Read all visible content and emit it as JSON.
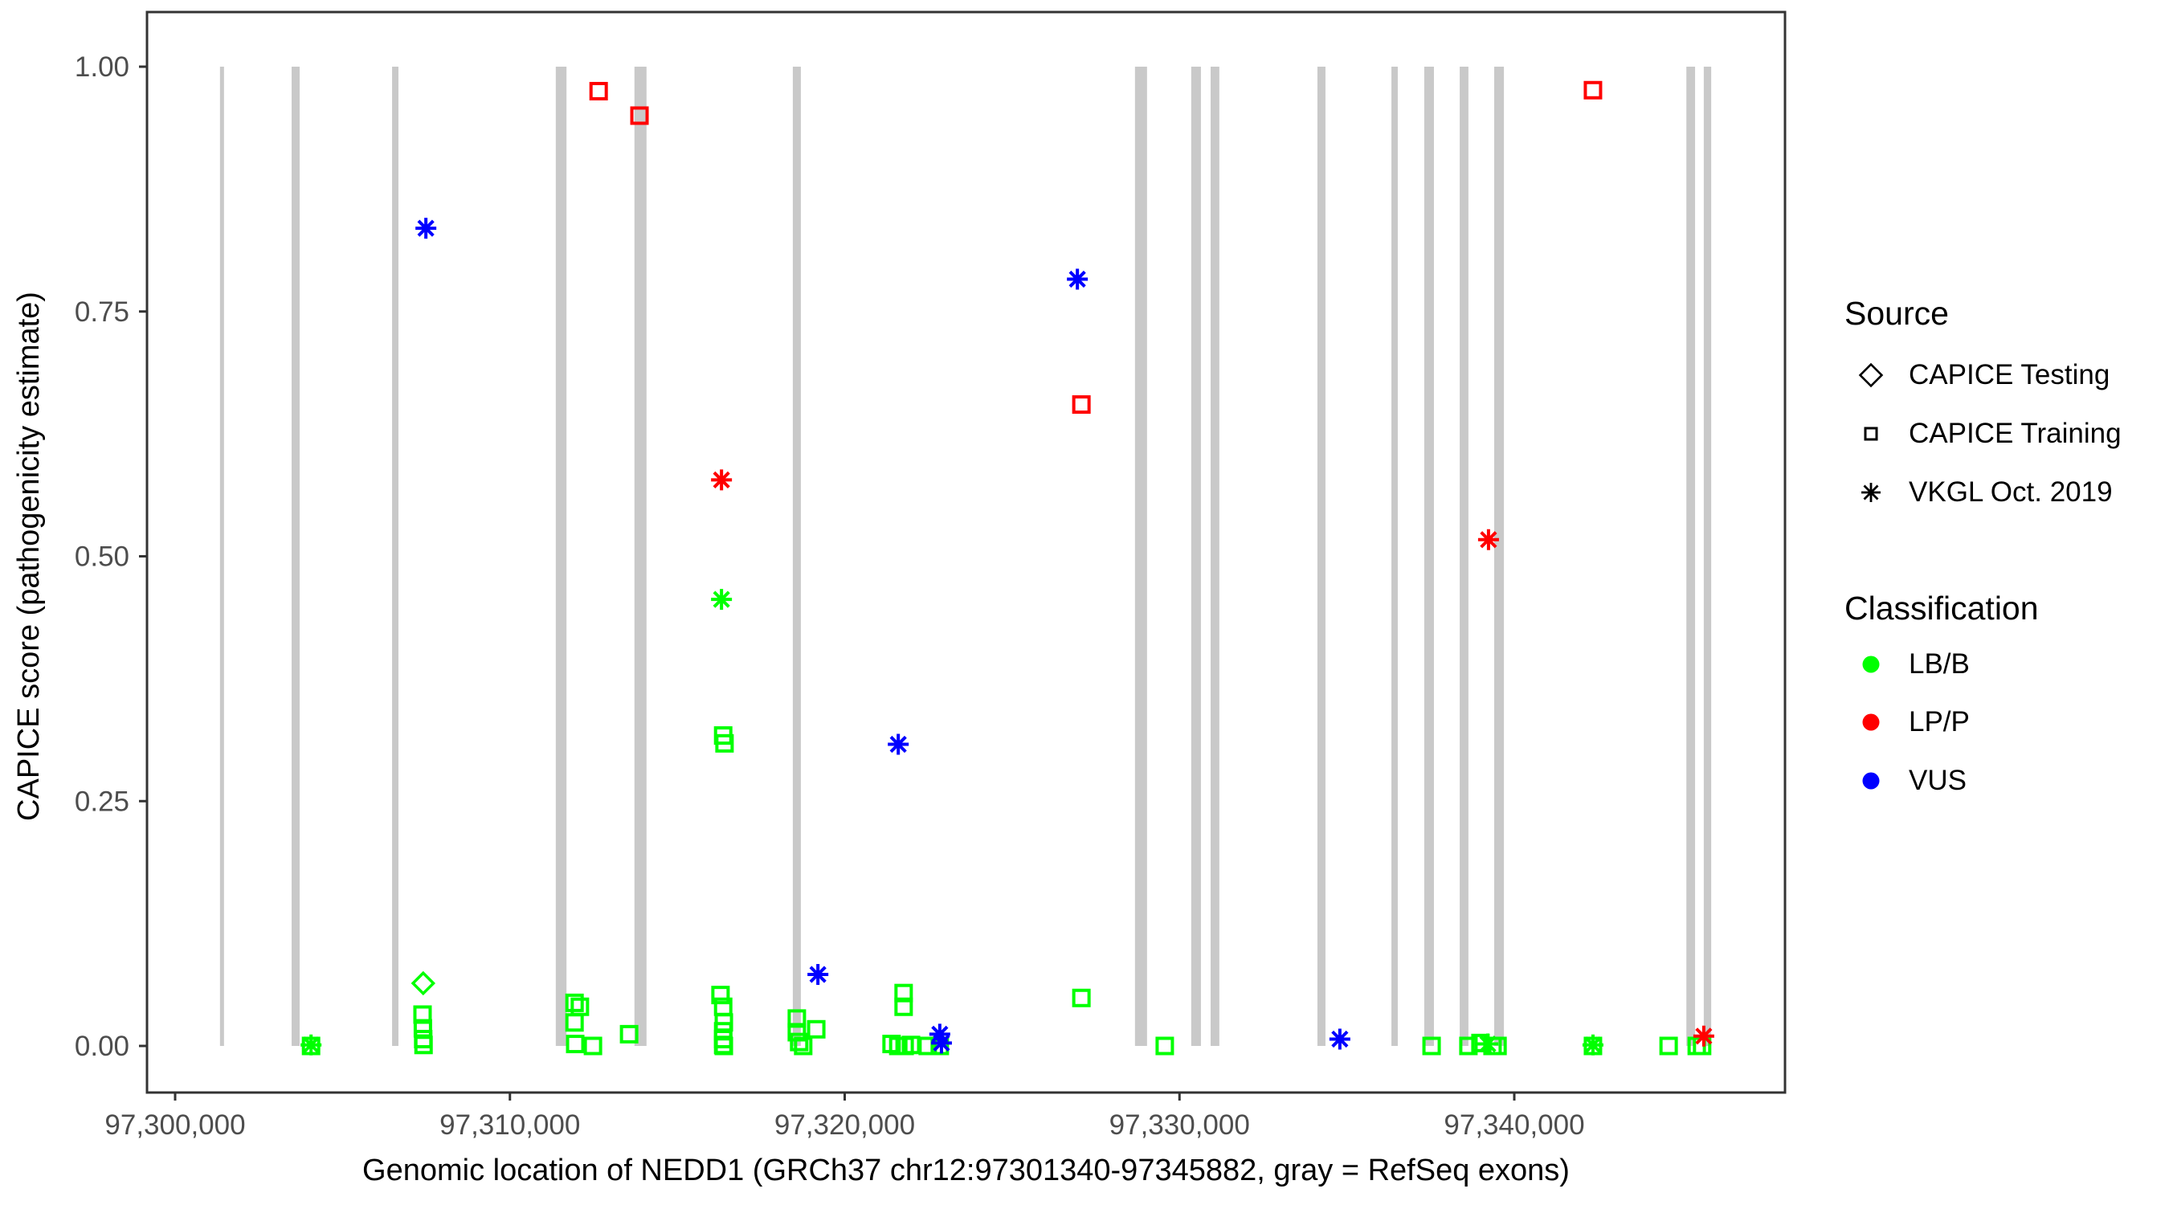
{
  "x_axis": {
    "title": "Genomic location of NEDD1 (GRCh37 chr12:97301340-97345882, gray = RefSeq exons)",
    "tick_labels": [
      "97,300,000",
      "97,310,000",
      "97,320,000",
      "97,330,000",
      "97,340,000"
    ],
    "tick_values": [
      97300000,
      97310000,
      97320000,
      97330000,
      97340000
    ]
  },
  "y_axis": {
    "title": "CAPICE score (pathogenicity estimate)",
    "tick_labels": [
      "0.00",
      "0.25",
      "0.50",
      "0.75",
      "1.00"
    ],
    "tick_values": [
      0,
      0.25,
      0.5,
      0.75,
      1.0
    ]
  },
  "legend": {
    "source": {
      "title": "Source",
      "items": [
        {
          "label": "CAPICE Testing",
          "marker": "diamond"
        },
        {
          "label": "CAPICE Training",
          "marker": "square"
        },
        {
          "label": "VKGL Oct. 2019",
          "marker": "asterisk"
        }
      ]
    },
    "classification": {
      "title": "Classification",
      "items": [
        {
          "label": "LB/B",
          "color": "#00FF00"
        },
        {
          "label": "LP/P",
          "color": "#FF0000"
        },
        {
          "label": "VUS",
          "color": "#0000FF"
        }
      ]
    }
  },
  "chart_data": {
    "type": "scatter",
    "title": "",
    "xlabel": "Genomic location of NEDD1 (GRCh37 chr12:97301340-97345882, gray = RefSeq exons)",
    "ylabel": "CAPICE score (pathogenicity estimate)",
    "xlim": [
      97299160,
      97348100
    ],
    "ylim": [
      -0.048,
      1.056
    ],
    "grid": false,
    "legend_position": "right",
    "colors": {
      "LB/B": "#00FF00",
      "LP/P": "#FF0000",
      "VUS": "#0000FF",
      "exon": "#C9C9C9"
    },
    "marker_shapes": {
      "CAPICE Testing": "diamond",
      "CAPICE Training": "square",
      "VKGL Oct. 2019": "asterisk"
    },
    "exons_gray_refseq": [
      [
        97301340,
        97301460
      ],
      [
        97303480,
        97303720
      ],
      [
        97306480,
        97306670
      ],
      [
        97311370,
        97311690
      ],
      [
        97313720,
        97314080
      ],
      [
        97318450,
        97318690
      ],
      [
        97328670,
        97329030
      ],
      [
        97330350,
        97330640
      ],
      [
        97330930,
        97331190
      ],
      [
        97334120,
        97334360
      ],
      [
        97336330,
        97336520
      ],
      [
        97337310,
        97337600
      ],
      [
        97338370,
        97338630
      ],
      [
        97339400,
        97339690
      ],
      [
        97345140,
        97345400
      ],
      [
        97345660,
        97345882
      ]
    ],
    "points": [
      {
        "source": "CAPICE Testing",
        "classification": "LB/B",
        "x": 97307410,
        "y": 0.064
      },
      {
        "source": "CAPICE Training",
        "classification": "LP/P",
        "x": 97312650,
        "y": 0.975
      },
      {
        "source": "CAPICE Training",
        "classification": "LP/P",
        "x": 97313870,
        "y": 0.95
      },
      {
        "source": "CAPICE Training",
        "classification": "LP/P",
        "x": 97327070,
        "y": 0.655
      },
      {
        "source": "CAPICE Training",
        "classification": "LP/P",
        "x": 97342350,
        "y": 0.976
      },
      {
        "source": "CAPICE Training",
        "classification": "LB/B",
        "x": 97304060,
        "y": 0.0
      },
      {
        "source": "CAPICE Training",
        "classification": "LB/B",
        "x": 97307390,
        "y": 0.032
      },
      {
        "source": "CAPICE Training",
        "classification": "LB/B",
        "x": 97307400,
        "y": 0.018
      },
      {
        "source": "CAPICE Training",
        "classification": "LB/B",
        "x": 97307410,
        "y": 0.007
      },
      {
        "source": "CAPICE Training",
        "classification": "LB/B",
        "x": 97307420,
        "y": 0.001
      },
      {
        "source": "CAPICE Training",
        "classification": "LB/B",
        "x": 97311930,
        "y": 0.044
      },
      {
        "source": "CAPICE Training",
        "classification": "LB/B",
        "x": 97312090,
        "y": 0.04
      },
      {
        "source": "CAPICE Training",
        "classification": "LB/B",
        "x": 97311930,
        "y": 0.024
      },
      {
        "source": "CAPICE Training",
        "classification": "LB/B",
        "x": 97311950,
        "y": 0.002
      },
      {
        "source": "CAPICE Training",
        "classification": "LB/B",
        "x": 97312480,
        "y": 0.0
      },
      {
        "source": "CAPICE Training",
        "classification": "LB/B",
        "x": 97313560,
        "y": 0.012
      },
      {
        "source": "CAPICE Training",
        "classification": "LB/B",
        "x": 97316290,
        "y": 0.052
      },
      {
        "source": "CAPICE Training",
        "classification": "LB/B",
        "x": 97316370,
        "y": 0.04
      },
      {
        "source": "CAPICE Training",
        "classification": "LB/B",
        "x": 97316390,
        "y": 0.024
      },
      {
        "source": "CAPICE Training",
        "classification": "LB/B",
        "x": 97316370,
        "y": 0.015
      },
      {
        "source": "CAPICE Training",
        "classification": "LB/B",
        "x": 97316370,
        "y": 0.007
      },
      {
        "source": "CAPICE Training",
        "classification": "LB/B",
        "x": 97316370,
        "y": 0.001
      },
      {
        "source": "CAPICE Training",
        "classification": "LB/B",
        "x": 97316390,
        "y": 0.0
      },
      {
        "source": "CAPICE Training",
        "classification": "LB/B",
        "x": 97316370,
        "y": 0.317
      },
      {
        "source": "CAPICE Training",
        "classification": "LB/B",
        "x": 97316410,
        "y": 0.309
      },
      {
        "source": "CAPICE Training",
        "classification": "LB/B",
        "x": 97318570,
        "y": 0.028
      },
      {
        "source": "CAPICE Training",
        "classification": "LB/B",
        "x": 97318570,
        "y": 0.014
      },
      {
        "source": "CAPICE Training",
        "classification": "LB/B",
        "x": 97318640,
        "y": 0.004
      },
      {
        "source": "CAPICE Training",
        "classification": "LB/B",
        "x": 97318760,
        "y": 0.0
      },
      {
        "source": "CAPICE Training",
        "classification": "LB/B",
        "x": 97319150,
        "y": 0.017
      },
      {
        "source": "CAPICE Training",
        "classification": "LB/B",
        "x": 97321760,
        "y": 0.054
      },
      {
        "source": "CAPICE Training",
        "classification": "LB/B",
        "x": 97321760,
        "y": 0.04
      },
      {
        "source": "CAPICE Training",
        "classification": "LB/B",
        "x": 97321400,
        "y": 0.002
      },
      {
        "source": "CAPICE Training",
        "classification": "LB/B",
        "x": 97321600,
        "y": 0.0
      },
      {
        "source": "CAPICE Training",
        "classification": "LB/B",
        "x": 97321790,
        "y": 0.0
      },
      {
        "source": "CAPICE Training",
        "classification": "LB/B",
        "x": 97321980,
        "y": 0.001
      },
      {
        "source": "CAPICE Training",
        "classification": "LB/B",
        "x": 97322480,
        "y": 0.0
      },
      {
        "source": "CAPICE Training",
        "classification": "LB/B",
        "x": 97322840,
        "y": 0.0
      },
      {
        "source": "CAPICE Training",
        "classification": "LB/B",
        "x": 97327070,
        "y": 0.049
      },
      {
        "source": "CAPICE Training",
        "classification": "LB/B",
        "x": 97329560,
        "y": 0.0
      },
      {
        "source": "CAPICE Training",
        "classification": "LB/B",
        "x": 97337530,
        "y": 0.0
      },
      {
        "source": "CAPICE Training",
        "classification": "LB/B",
        "x": 97338630,
        "y": 0.0
      },
      {
        "source": "CAPICE Training",
        "classification": "LB/B",
        "x": 97338990,
        "y": 0.003
      },
      {
        "source": "CAPICE Training",
        "classification": "LB/B",
        "x": 97339350,
        "y": 0.0
      },
      {
        "source": "CAPICE Training",
        "classification": "LB/B",
        "x": 97339500,
        "y": 0.0
      },
      {
        "source": "CAPICE Training",
        "classification": "LB/B",
        "x": 97342350,
        "y": 0.0
      },
      {
        "source": "CAPICE Training",
        "classification": "LB/B",
        "x": 97344610,
        "y": 0.0
      },
      {
        "source": "CAPICE Training",
        "classification": "LB/B",
        "x": 97345450,
        "y": 0.0
      },
      {
        "source": "CAPICE Training",
        "classification": "LB/B",
        "x": 97345610,
        "y": 0.0
      },
      {
        "source": "VKGL Oct. 2019",
        "classification": "VUS",
        "x": 97307490,
        "y": 0.835
      },
      {
        "source": "VKGL Oct. 2019",
        "classification": "VUS",
        "x": 97326950,
        "y": 0.783
      },
      {
        "source": "VKGL Oct. 2019",
        "classification": "VUS",
        "x": 97321600,
        "y": 0.308
      },
      {
        "source": "VKGL Oct. 2019",
        "classification": "VUS",
        "x": 97319200,
        "y": 0.073
      },
      {
        "source": "VKGL Oct. 2019",
        "classification": "VUS",
        "x": 97322840,
        "y": 0.012
      },
      {
        "source": "VKGL Oct. 2019",
        "classification": "VUS",
        "x": 97322890,
        "y": 0.003
      },
      {
        "source": "VKGL Oct. 2019",
        "classification": "VUS",
        "x": 97334790,
        "y": 0.007
      },
      {
        "source": "VKGL Oct. 2019",
        "classification": "LP/P",
        "x": 97316320,
        "y": 0.578
      },
      {
        "source": "VKGL Oct. 2019",
        "classification": "LP/P",
        "x": 97339230,
        "y": 0.517
      },
      {
        "source": "VKGL Oct. 2019",
        "classification": "LP/P",
        "x": 97345660,
        "y": 0.01
      },
      {
        "source": "VKGL Oct. 2019",
        "classification": "LB/B",
        "x": 97316320,
        "y": 0.456
      },
      {
        "source": "VKGL Oct. 2019",
        "classification": "LB/B",
        "x": 97304060,
        "y": 0.001
      },
      {
        "source": "VKGL Oct. 2019",
        "classification": "LB/B",
        "x": 97339210,
        "y": 0.002
      },
      {
        "source": "VKGL Oct. 2019",
        "classification": "LB/B",
        "x": 97342350,
        "y": 0.001
      }
    ]
  }
}
